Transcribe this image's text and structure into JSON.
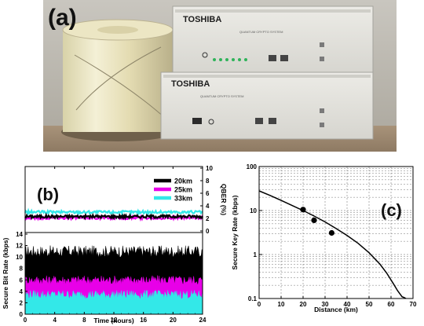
{
  "panel_a": {
    "label": "(a)",
    "brand_top": "TOSHIBA",
    "brand_bottom": "TOSHIBA",
    "system_text_top": "QUANTUM CRYPTO SYSTEM",
    "system_text_bottom": "QUANTUM CRYPTO SYSTEM"
  },
  "chart_data": [
    {
      "panel": "(b)",
      "type": "line",
      "xlabel": "Time (hours)",
      "ylabel_left": "Secure Bit Rate (kbps)",
      "ylabel_right": "QBER (%)",
      "xlim": [
        0,
        24
      ],
      "xticks": [
        0,
        4,
        8,
        12,
        16,
        20,
        24
      ],
      "ylim_left": [
        0,
        14
      ],
      "yticks_left": [
        0,
        2,
        4,
        6,
        8,
        10,
        12,
        14
      ],
      "ylim_right": [
        0,
        10
      ],
      "yticks_right": [
        0,
        2,
        4,
        6,
        8,
        10
      ],
      "legend_position": "top-right",
      "colors": {
        "20km": "#000000",
        "25km": "#e800e8",
        "33km": "#33e8e8"
      },
      "series": [
        {
          "name": "20km",
          "qber_percent": 2.3,
          "secure_bit_rate_kbps": {
            "mean": 10.5,
            "min": 8.8,
            "max": 12.0
          }
        },
        {
          "name": "25km",
          "qber_percent": 2.1,
          "secure_bit_rate_kbps": {
            "mean": 5.5,
            "min": 4.2,
            "max": 6.8
          }
        },
        {
          "name": "33km",
          "qber_percent": 3.0,
          "secure_bit_rate_kbps": {
            "mean": 3.0,
            "min": 1.8,
            "max": 4.2
          }
        }
      ]
    },
    {
      "panel": "(c)",
      "type": "scatter",
      "xlabel": "Distance (km)",
      "ylabel": "Secure Key Rate (kbps)",
      "xlim": [
        0,
        70
      ],
      "xticks": [
        0,
        10,
        20,
        30,
        40,
        50,
        60,
        70
      ],
      "ylim": [
        0.1,
        100
      ],
      "yscale": "log",
      "yticks": [
        0.1,
        1,
        10,
        100
      ],
      "ytick_labels": [
        "0.1",
        "1",
        "10",
        "100"
      ],
      "grid": true,
      "points": [
        {
          "x": 20,
          "y": 10.5
        },
        {
          "x": 25,
          "y": 6.0
        },
        {
          "x": 33,
          "y": 3.1
        }
      ],
      "curve": {
        "x": [
          0,
          5,
          10,
          15,
          20,
          25,
          30,
          35,
          40,
          45,
          50,
          55,
          58,
          61,
          63,
          65,
          66,
          66.8
        ],
        "y": [
          28,
          22,
          17,
          13,
          10,
          7.5,
          5.5,
          3.9,
          2.7,
          1.8,
          1.1,
          0.6,
          0.38,
          0.22,
          0.15,
          0.11,
          0.105,
          0.1
        ]
      }
    }
  ]
}
